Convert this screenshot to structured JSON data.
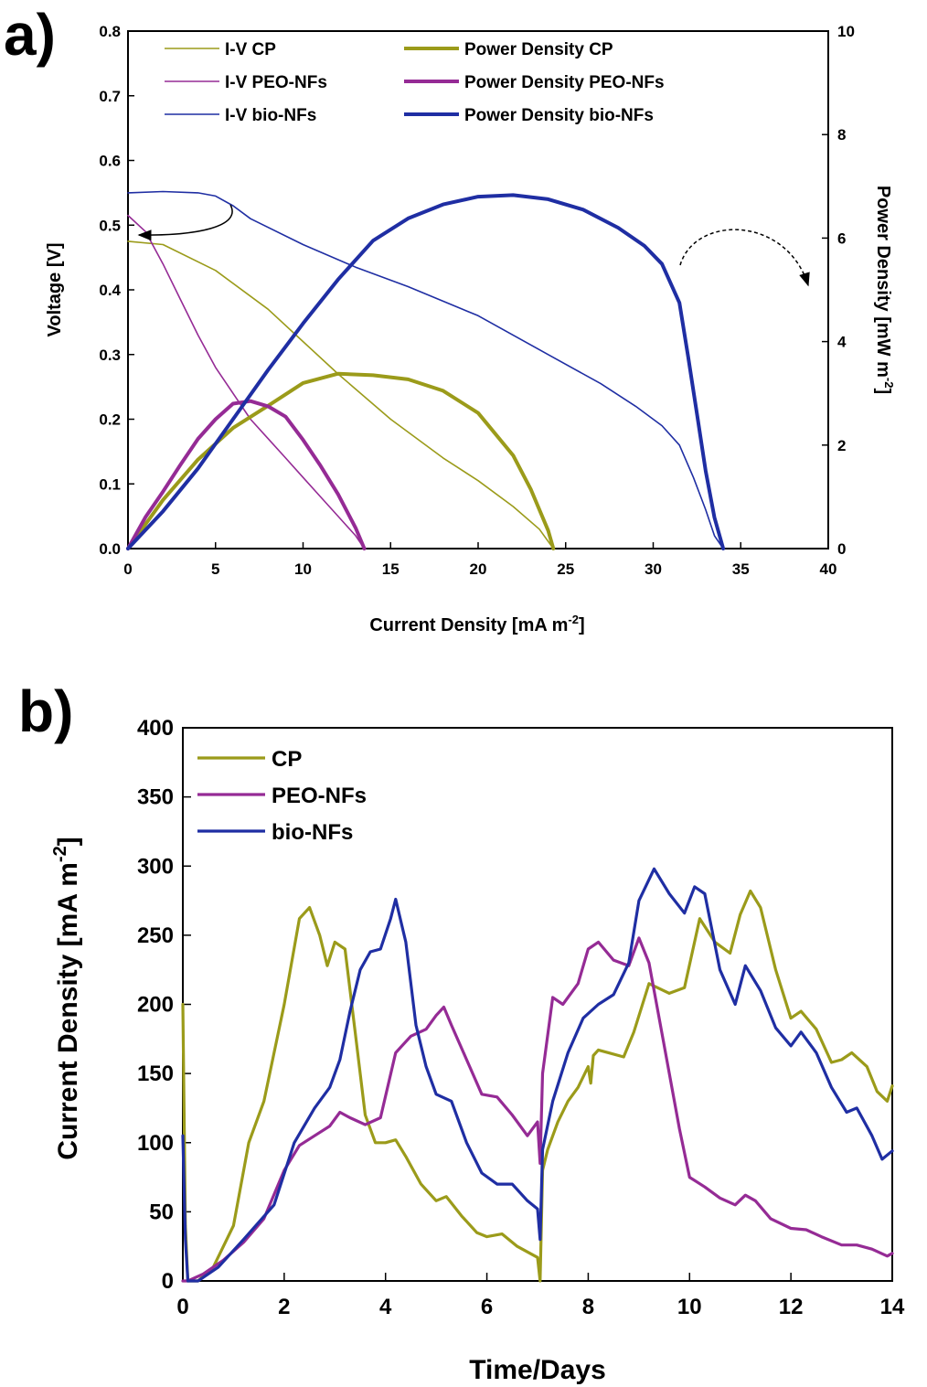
{
  "chart_data": [
    {
      "panel_label": "a)",
      "type": "line",
      "xlabel": "Current Density [mA m-2]",
      "ylabel": "Voltage [V]",
      "y2label": "Power Density [mW m-2]",
      "xlim": [
        0,
        40
      ],
      "ylim": [
        0,
        0.8
      ],
      "y2lim": [
        0,
        10
      ],
      "xticks": [
        0,
        5,
        10,
        15,
        20,
        25,
        30,
        35,
        40
      ],
      "yticks": [
        0.0,
        0.1,
        0.2,
        0.3,
        0.4,
        0.5,
        0.6,
        0.7,
        0.8
      ],
      "y2ticks": [
        0,
        2,
        4,
        6,
        8,
        10
      ],
      "grid": false,
      "legend_position": "top",
      "colors": {
        "CP": "#9b9b1a",
        "PEO-NFs": "#952b95",
        "bio-NFs": "#1f2ea3"
      },
      "series": [
        {
          "name": "I-V CP",
          "axis": "left",
          "color": "#9b9b1a",
          "weight": "thin",
          "x": [
            0,
            2,
            5,
            8,
            10,
            12,
            15,
            18,
            20,
            22,
            23.5,
            24.3
          ],
          "y": [
            0.475,
            0.47,
            0.43,
            0.37,
            0.32,
            0.27,
            0.2,
            0.14,
            0.105,
            0.065,
            0.03,
            0.0
          ]
        },
        {
          "name": "I-V PEO-NFs",
          "axis": "left",
          "color": "#952b95",
          "weight": "thin",
          "x": [
            0,
            1,
            2,
            3,
            4,
            5,
            6,
            7,
            8,
            9,
            10,
            11,
            12,
            13,
            13.5
          ],
          "y": [
            0.515,
            0.49,
            0.44,
            0.385,
            0.33,
            0.28,
            0.24,
            0.2,
            0.17,
            0.14,
            0.11,
            0.08,
            0.05,
            0.02,
            0.0
          ]
        },
        {
          "name": "I-V bio-NFs",
          "axis": "left",
          "color": "#1f2ea3",
          "weight": "thin",
          "x": [
            0,
            2,
            4,
            5,
            6,
            7,
            10,
            13,
            16,
            20,
            24,
            27,
            29,
            30.5,
            31.5,
            32.3,
            33,
            33.5,
            34
          ],
          "y": [
            0.55,
            0.552,
            0.55,
            0.545,
            0.53,
            0.51,
            0.47,
            0.435,
            0.405,
            0.36,
            0.3,
            0.255,
            0.22,
            0.19,
            0.16,
            0.11,
            0.06,
            0.02,
            0.0
          ]
        },
        {
          "name": "Power Density CP",
          "axis": "right",
          "color": "#9b9b1a",
          "weight": "thick",
          "x": [
            0,
            2,
            4,
            6,
            8,
            10,
            12,
            14,
            16,
            18,
            20,
            22,
            23,
            24,
            24.3
          ],
          "y": [
            0,
            0.94,
            1.72,
            2.33,
            2.76,
            3.2,
            3.38,
            3.35,
            3.27,
            3.05,
            2.62,
            1.8,
            1.15,
            0.35,
            0
          ]
        },
        {
          "name": "Power Density PEO-NFs",
          "axis": "right",
          "color": "#952b95",
          "weight": "thick",
          "x": [
            0,
            1,
            2,
            3,
            4,
            5,
            6,
            7,
            8,
            9,
            10,
            11,
            12,
            13,
            13.5
          ],
          "y": [
            0,
            0.61,
            1.1,
            1.62,
            2.12,
            2.5,
            2.8,
            2.85,
            2.75,
            2.55,
            2.1,
            1.6,
            1.05,
            0.4,
            0
          ]
        },
        {
          "name": "Power Density bio-NFs",
          "axis": "right",
          "color": "#1f2ea3",
          "weight": "thick",
          "x": [
            0,
            2,
            4,
            6,
            8,
            10,
            12,
            14,
            16,
            18,
            20,
            22,
            24,
            26,
            28,
            29.5,
            30.5,
            31.5,
            32,
            32.5,
            33,
            33.5,
            34
          ],
          "y": [
            0,
            0.72,
            1.55,
            2.5,
            3.45,
            4.35,
            5.2,
            5.95,
            6.38,
            6.65,
            6.8,
            6.83,
            6.75,
            6.55,
            6.2,
            5.85,
            5.5,
            4.75,
            3.7,
            2.6,
            1.5,
            0.6,
            0
          ]
        }
      ]
    },
    {
      "panel_label": "b)",
      "type": "line",
      "xlabel": "Time/Days",
      "ylabel": "Current Density [mA m-2]",
      "xlim": [
        0,
        14
      ],
      "ylim": [
        0,
        400
      ],
      "xticks": [
        0,
        2,
        4,
        6,
        8,
        10,
        12,
        14
      ],
      "yticks": [
        0,
        50,
        100,
        150,
        200,
        250,
        300,
        350,
        400
      ],
      "grid": false,
      "legend_position": "top-left",
      "colors": {
        "CP": "#9b9b1a",
        "PEO-NFs": "#952b95",
        "bio-NFs": "#1f2ea3"
      },
      "series": [
        {
          "name": "CP",
          "color": "#9b9b1a",
          "x": [
            0,
            0.05,
            0.1,
            0.3,
            0.6,
            1.0,
            1.3,
            1.6,
            2.0,
            2.3,
            2.5,
            2.7,
            2.85,
            3.0,
            3.2,
            3.4,
            3.6,
            3.8,
            4.0,
            4.2,
            4.4,
            4.7,
            5.0,
            5.2,
            5.5,
            5.8,
            6.0,
            6.3,
            6.6,
            7.0,
            7.05,
            7.1,
            7.2,
            7.4,
            7.6,
            7.8,
            8.0,
            8.05,
            8.1,
            8.2,
            8.4,
            8.7,
            8.9,
            9.2,
            9.6,
            9.9,
            10.2,
            10.5,
            10.8,
            11.0,
            11.2,
            11.4,
            11.7,
            12.0,
            12.2,
            12.5,
            12.8,
            13.0,
            13.2,
            13.5,
            13.7,
            13.9,
            14.0
          ],
          "y": [
            200,
            40,
            0,
            0,
            10,
            40,
            100,
            130,
            200,
            262,
            270,
            250,
            228,
            245,
            240,
            180,
            120,
            100,
            100,
            102,
            90,
            70,
            58,
            61,
            47,
            35,
            32,
            34,
            25,
            17,
            0,
            80,
            95,
            115,
            130,
            140,
            155,
            143,
            163,
            167,
            165,
            162,
            180,
            215,
            208,
            212,
            262,
            245,
            237,
            265,
            282,
            270,
            225,
            190,
            195,
            182,
            158,
            160,
            165,
            155,
            137,
            130,
            141
          ]
        },
        {
          "name": "PEO-NFs",
          "color": "#952b95",
          "x": [
            0,
            0.1,
            0.4,
            0.8,
            1.2,
            1.6,
            2.0,
            2.3,
            2.6,
            2.9,
            3.1,
            3.3,
            3.6,
            3.9,
            4.2,
            4.5,
            4.8,
            5.0,
            5.15,
            5.3,
            5.6,
            5.9,
            6.2,
            6.5,
            6.8,
            7.0,
            7.05,
            7.1,
            7.3,
            7.5,
            7.8,
            8.0,
            8.2,
            8.5,
            8.8,
            9.0,
            9.2,
            9.5,
            9.8,
            10.0,
            10.3,
            10.6,
            10.9,
            11.1,
            11.3,
            11.6,
            12.0,
            12.3,
            12.6,
            13.0,
            13.3,
            13.6,
            13.9,
            14.0
          ],
          "y": [
            0,
            0,
            5,
            15,
            28,
            45,
            80,
            98,
            105,
            112,
            122,
            118,
            113,
            118,
            165,
            177,
            182,
            192,
            198,
            185,
            160,
            135,
            133,
            120,
            105,
            115,
            85,
            150,
            205,
            200,
            215,
            240,
            245,
            232,
            228,
            248,
            230,
            170,
            110,
            75,
            68,
            60,
            55,
            62,
            58,
            45,
            38,
            37,
            32,
            26,
            26,
            23,
            18,
            20
          ]
        },
        {
          "name": "bio-NFs",
          "color": "#1f2ea3",
          "x": [
            0,
            0.05,
            0.1,
            0.3,
            0.7,
            1.2,
            1.8,
            2.2,
            2.6,
            2.9,
            3.1,
            3.3,
            3.5,
            3.7,
            3.9,
            4.1,
            4.2,
            4.4,
            4.6,
            4.8,
            5.0,
            5.3,
            5.6,
            5.9,
            6.2,
            6.5,
            6.8,
            7.0,
            7.05,
            7.1,
            7.3,
            7.6,
            7.9,
            8.2,
            8.5,
            8.8,
            9.0,
            9.3,
            9.6,
            9.9,
            10.1,
            10.3,
            10.6,
            10.9,
            11.1,
            11.4,
            11.7,
            12.0,
            12.2,
            12.5,
            12.8,
            13.1,
            13.3,
            13.6,
            13.8,
            14.0
          ],
          "y": [
            105,
            30,
            0,
            0,
            10,
            30,
            55,
            100,
            125,
            140,
            160,
            195,
            225,
            238,
            240,
            262,
            276,
            245,
            185,
            155,
            135,
            130,
            100,
            78,
            70,
            70,
            58,
            52,
            30,
            95,
            130,
            165,
            190,
            200,
            207,
            230,
            275,
            298,
            280,
            266,
            285,
            280,
            225,
            200,
            228,
            210,
            183,
            170,
            180,
            165,
            140,
            122,
            125,
            105,
            88,
            94
          ]
        }
      ]
    }
  ]
}
